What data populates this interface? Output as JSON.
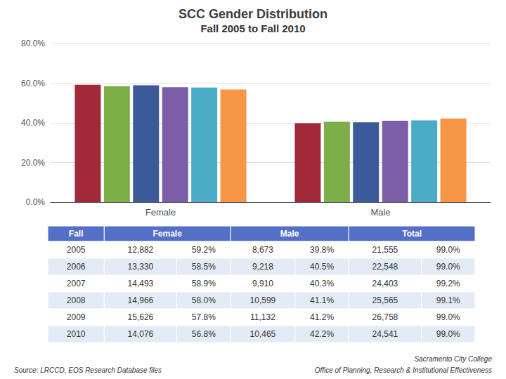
{
  "chart_data": {
    "type": "bar",
    "title": "SCC Gender Distribution",
    "subtitle": "Fall 2005 to Fall 2010",
    "categories": [
      "Female",
      "Male"
    ],
    "series": [
      {
        "name": "2005",
        "color": "#A0293A",
        "values": [
          59.2,
          39.8
        ]
      },
      {
        "name": "2006",
        "color": "#7DAF49",
        "values": [
          58.5,
          40.5
        ]
      },
      {
        "name": "2007",
        "color": "#3C5A9A",
        "values": [
          58.9,
          40.3
        ]
      },
      {
        "name": "2008",
        "color": "#7B5EA7",
        "values": [
          58.0,
          41.1
        ]
      },
      {
        "name": "2009",
        "color": "#4BACC6",
        "values": [
          57.8,
          41.2
        ]
      },
      {
        "name": "2010",
        "color": "#F79646",
        "values": [
          56.8,
          42.2
        ]
      }
    ],
    "ylim": [
      0,
      80
    ],
    "yticks": [
      {
        "value": 0,
        "label": "0.0%"
      },
      {
        "value": 20,
        "label": "20.0%"
      },
      {
        "value": 40,
        "label": "40.0%"
      },
      {
        "value": 60,
        "label": "60.0%"
      },
      {
        "value": 80,
        "label": "80.0%"
      }
    ],
    "grid": true,
    "table": {
      "headers": [
        "Fall",
        "Female",
        "Male",
        "Total"
      ],
      "rows": [
        [
          "2005",
          "12,882",
          "59.2%",
          "8,673",
          "39.8%",
          "21,555",
          "99.0%"
        ],
        [
          "2006",
          "13,330",
          "58.5%",
          "9,218",
          "40.5%",
          "22,548",
          "99.0%"
        ],
        [
          "2007",
          "14,493",
          "58.9%",
          "9,910",
          "40.3%",
          "24,403",
          "99.2%"
        ],
        [
          "2008",
          "14,966",
          "58.0%",
          "10,599",
          "41.1%",
          "25,565",
          "99.1%"
        ],
        [
          "2009",
          "15,626",
          "57.8%",
          "11,132",
          "41.2%",
          "26,758",
          "99.0%"
        ],
        [
          "2010",
          "14,076",
          "56.8%",
          "10,465",
          "42.2%",
          "24,541",
          "99.0%"
        ]
      ]
    },
    "annotations": [
      "Source: LRCCD, EOS Research Database files",
      "Sacramento City College",
      "Office of Planning, Research & Institutional Effectiveness"
    ]
  }
}
